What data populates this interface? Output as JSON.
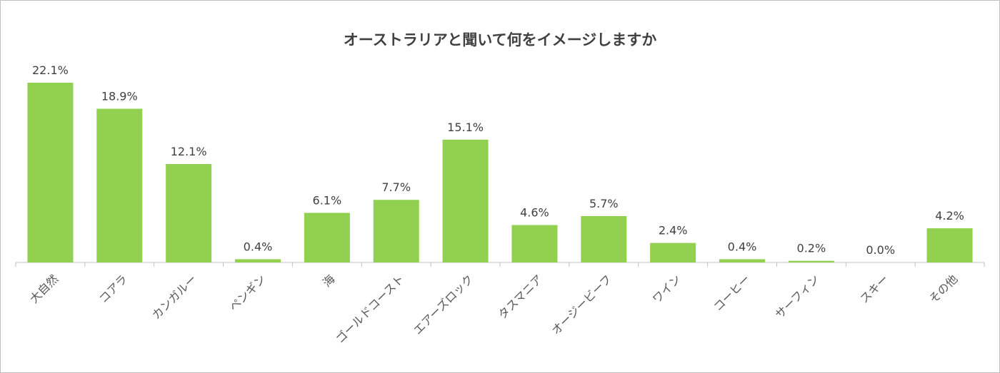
{
  "chart_data": {
    "type": "bar",
    "title": "オーストラリアと聞いて何をイメージしますか",
    "categories": [
      "大自然",
      "コアラ",
      "カンガルー",
      "ペンギン",
      "海",
      "ゴールドコースト",
      "エアーズロック",
      "タスマニア",
      "オージービーフ",
      "ワイン",
      "コーヒー",
      "サーフィン",
      "スキー",
      "その他"
    ],
    "values": [
      22.1,
      18.9,
      12.1,
      0.4,
      6.1,
      7.7,
      15.1,
      4.6,
      5.7,
      2.4,
      0.4,
      0.2,
      0.0,
      4.2
    ],
    "value_labels": [
      "22.1%",
      "18.9%",
      "12.1%",
      "0.4%",
      "6.1%",
      "7.7%",
      "15.1%",
      "4.6%",
      "5.7%",
      "2.4%",
      "0.4%",
      "0.2%",
      "0.0%",
      "4.2%"
    ],
    "ylim": [
      0,
      22.1
    ],
    "grid": false,
    "legend": "none",
    "xlabel": "",
    "ylabel": ""
  },
  "colors": {
    "bar": "#92d050",
    "axis": "#bfbfbf",
    "text": "#404040"
  }
}
